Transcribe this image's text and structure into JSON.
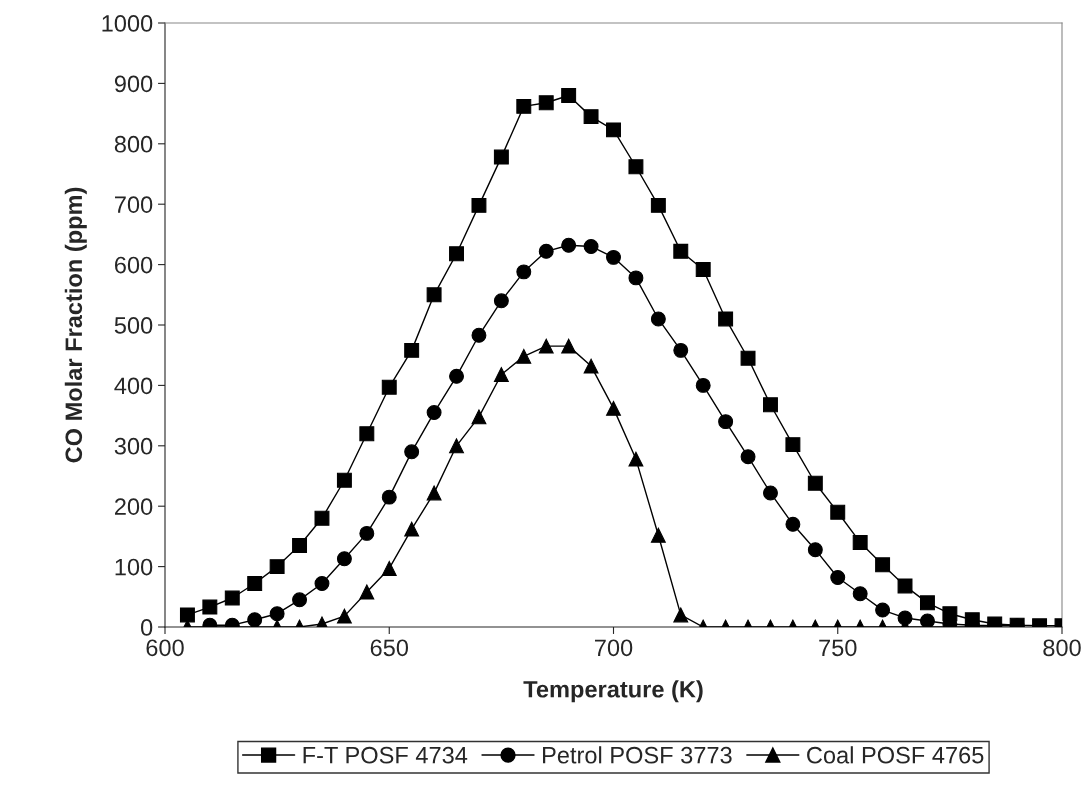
{
  "chart_data": {
    "type": "line",
    "xlabel": "Temperature (K)",
    "ylabel": "CO Molar Fraction (ppm)",
    "xlim": [
      600,
      800
    ],
    "xticks": [
      600,
      650,
      700,
      750,
      800
    ],
    "ylim": [
      0,
      1000
    ],
    "yticks": [
      0,
      100,
      200,
      300,
      400,
      500,
      600,
      700,
      800,
      900,
      1000
    ],
    "grid": false,
    "legend": "bottom",
    "line_style": "solid",
    "series": [
      {
        "name": "F-T POSF 4734",
        "color": "#000000",
        "marker": "square",
        "x": [
          605,
          610,
          615,
          620,
          625,
          630,
          635,
          640,
          645,
          650,
          655,
          660,
          665,
          670,
          675,
          680,
          685,
          690,
          695,
          700,
          705,
          710,
          715,
          720,
          725,
          730,
          735,
          740,
          745,
          750,
          755,
          760,
          765,
          770,
          775,
          780,
          785,
          790,
          795,
          800
        ],
        "values": [
          20,
          33,
          48,
          72,
          100,
          135,
          180,
          243,
          320,
          397,
          458,
          550,
          618,
          698,
          778,
          862,
          868,
          880,
          845,
          823,
          762,
          698,
          622,
          592,
          510,
          445,
          368,
          302,
          238,
          190,
          140,
          103,
          68,
          40,
          22,
          12,
          5,
          3,
          2,
          2
        ]
      },
      {
        "name": "Petrol POSF 3773",
        "color": "#000000",
        "marker": "circle",
        "x": [
          610,
          615,
          620,
          625,
          630,
          635,
          640,
          645,
          650,
          655,
          660,
          665,
          670,
          675,
          680,
          685,
          690,
          695,
          700,
          705,
          710,
          715,
          720,
          725,
          730,
          735,
          740,
          745,
          750,
          755,
          760,
          765,
          770,
          775,
          780,
          785,
          790
        ],
        "values": [
          3,
          3,
          12,
          22,
          45,
          72,
          113,
          155,
          215,
          290,
          355,
          415,
          483,
          540,
          588,
          622,
          632,
          630,
          612,
          578,
          510,
          458,
          400,
          340,
          282,
          222,
          170,
          128,
          82,
          55,
          28,
          15,
          10,
          5,
          3,
          2,
          2
        ]
      },
      {
        "name": "Coal POSF 4765",
        "color": "#000000",
        "marker": "triangle",
        "x": [
          605,
          610,
          615,
          620,
          625,
          630,
          635,
          640,
          645,
          650,
          655,
          660,
          665,
          670,
          675,
          680,
          685,
          690,
          695,
          700,
          705,
          710,
          715,
          720,
          725,
          730,
          735,
          740,
          745,
          750,
          755,
          760,
          765,
          770,
          775,
          780,
          785
        ],
        "values": [
          0,
          0,
          0,
          0,
          0,
          0,
          5,
          18,
          58,
          97,
          162,
          222,
          300,
          348,
          418,
          448,
          465,
          465,
          432,
          362,
          278,
          152,
          20,
          0,
          0,
          0,
          0,
          0,
          0,
          0,
          0,
          0,
          0,
          0,
          0,
          0,
          0
        ]
      }
    ]
  }
}
